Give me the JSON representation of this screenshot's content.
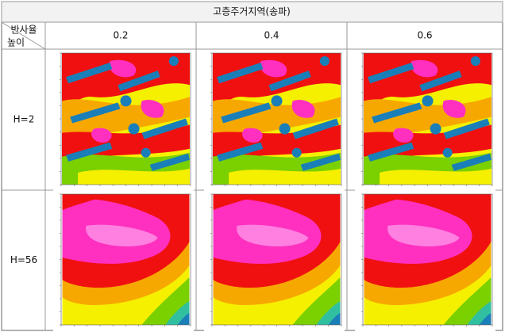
{
  "table": {
    "title": "고층주거지역(송파)",
    "corner": {
      "top": "반사율",
      "bottom": "높이"
    },
    "columns": [
      "0.2",
      "0.4",
      "0.6"
    ],
    "rows": [
      {
        "label": "H=2"
      },
      {
        "label": "H=56"
      }
    ]
  }
}
